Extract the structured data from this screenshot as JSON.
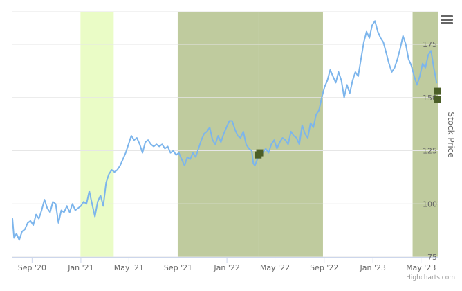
{
  "chart_data": {
    "type": "line",
    "title": "",
    "xlabel": "",
    "ylabel": "Stock Price",
    "ylim": [
      75,
      190
    ],
    "xlim": [
      "2020-07-14",
      "2023-06-12"
    ],
    "y_ticks": [
      75,
      100,
      125,
      150,
      175
    ],
    "x_ticks": [
      {
        "date": "2020-09-01",
        "label": "Sep '20"
      },
      {
        "date": "2021-01-01",
        "label": "Jan '21"
      },
      {
        "date": "2021-05-01",
        "label": "May '21"
      },
      {
        "date": "2021-09-01",
        "label": "Sep '21"
      },
      {
        "date": "2022-01-01",
        "label": "Jan '22"
      },
      {
        "date": "2022-05-01",
        "label": "May '22"
      },
      {
        "date": "2022-09-01",
        "label": "Sep '22"
      },
      {
        "date": "2023-01-01",
        "label": "Jan '23"
      },
      {
        "date": "2023-05-01",
        "label": "May '23"
      }
    ],
    "grid": true,
    "legend": "none",
    "series": [
      {
        "color": "#7cb5ec",
        "points": [
          [
            "2020-07-14",
            93
          ],
          [
            "2020-07-18",
            84
          ],
          [
            "2020-07-24",
            86
          ],
          [
            "2020-07-31",
            83
          ],
          [
            "2020-08-07",
            87
          ],
          [
            "2020-08-14",
            88
          ],
          [
            "2020-08-21",
            91
          ],
          [
            "2020-08-28",
            92
          ],
          [
            "2020-09-04",
            90
          ],
          [
            "2020-09-11",
            95
          ],
          [
            "2020-09-18",
            93
          ],
          [
            "2020-09-25",
            97
          ],
          [
            "2020-10-02",
            102
          ],
          [
            "2020-10-09",
            98
          ],
          [
            "2020-10-16",
            96
          ],
          [
            "2020-10-23",
            101
          ],
          [
            "2020-10-30",
            100
          ],
          [
            "2020-11-06",
            91
          ],
          [
            "2020-11-13",
            97
          ],
          [
            "2020-11-20",
            96
          ],
          [
            "2020-11-27",
            99
          ],
          [
            "2020-12-04",
            96
          ],
          [
            "2020-12-11",
            100
          ],
          [
            "2020-12-18",
            97
          ],
          [
            "2020-12-25",
            98
          ],
          [
            "2021-01-01",
            99
          ],
          [
            "2021-01-08",
            101
          ],
          [
            "2021-01-15",
            100
          ],
          [
            "2021-01-22",
            106
          ],
          [
            "2021-01-29",
            100
          ],
          [
            "2021-02-05",
            94
          ],
          [
            "2021-02-12",
            101
          ],
          [
            "2021-02-19",
            104
          ],
          [
            "2021-02-26",
            99
          ],
          [
            "2021-03-05",
            110
          ],
          [
            "2021-03-12",
            114
          ],
          [
            "2021-03-19",
            116
          ],
          [
            "2021-03-26",
            115
          ],
          [
            "2021-04-02",
            116
          ],
          [
            "2021-04-09",
            118
          ],
          [
            "2021-04-16",
            121
          ],
          [
            "2021-04-23",
            124
          ],
          [
            "2021-04-30",
            128
          ],
          [
            "2021-05-07",
            132
          ],
          [
            "2021-05-14",
            130
          ],
          [
            "2021-05-21",
            131
          ],
          [
            "2021-05-28",
            128
          ],
          [
            "2021-06-04",
            124
          ],
          [
            "2021-06-11",
            129
          ],
          [
            "2021-06-18",
            130
          ],
          [
            "2021-06-25",
            128
          ],
          [
            "2021-07-02",
            127
          ],
          [
            "2021-07-09",
            128
          ],
          [
            "2021-07-16",
            127
          ],
          [
            "2021-07-23",
            128
          ],
          [
            "2021-07-30",
            126
          ],
          [
            "2021-08-06",
            127
          ],
          [
            "2021-08-13",
            124
          ],
          [
            "2021-08-20",
            125
          ],
          [
            "2021-08-27",
            123
          ],
          [
            "2021-09-03",
            124
          ],
          [
            "2021-09-10",
            121
          ],
          [
            "2021-09-17",
            118
          ],
          [
            "2021-09-24",
            122
          ],
          [
            "2021-10-01",
            121
          ],
          [
            "2021-10-08",
            124
          ],
          [
            "2021-10-15",
            122
          ],
          [
            "2021-10-22",
            126
          ],
          [
            "2021-10-29",
            130
          ],
          [
            "2021-11-05",
            133
          ],
          [
            "2021-11-12",
            134
          ],
          [
            "2021-11-19",
            136
          ],
          [
            "2021-11-26",
            130
          ],
          [
            "2021-12-03",
            128
          ],
          [
            "2021-12-10",
            132
          ],
          [
            "2021-12-17",
            129
          ],
          [
            "2021-12-24",
            133
          ],
          [
            "2021-12-31",
            136
          ],
          [
            "2022-01-07",
            139
          ],
          [
            "2022-01-14",
            139
          ],
          [
            "2022-01-21",
            135
          ],
          [
            "2022-01-28",
            132
          ],
          [
            "2022-02-04",
            131
          ],
          [
            "2022-02-11",
            134
          ],
          [
            "2022-02-18",
            128
          ],
          [
            "2022-02-25",
            126
          ],
          [
            "2022-03-04",
            125
          ],
          [
            "2022-03-08",
            119
          ],
          [
            "2022-03-12",
            118
          ],
          [
            "2022-03-18",
            121
          ],
          [
            "2022-03-25",
            123
          ],
          [
            "2022-04-01",
            124
          ],
          [
            "2022-04-08",
            126
          ],
          [
            "2022-04-15",
            124
          ],
          [
            "2022-04-22",
            128
          ],
          [
            "2022-04-29",
            130
          ],
          [
            "2022-05-06",
            126
          ],
          [
            "2022-05-13",
            129
          ],
          [
            "2022-05-20",
            131
          ],
          [
            "2022-05-27",
            130
          ],
          [
            "2022-06-03",
            128
          ],
          [
            "2022-06-10",
            134
          ],
          [
            "2022-06-17",
            132
          ],
          [
            "2022-06-24",
            131
          ],
          [
            "2022-07-01",
            128
          ],
          [
            "2022-07-08",
            137
          ],
          [
            "2022-07-15",
            133
          ],
          [
            "2022-07-22",
            131
          ],
          [
            "2022-07-29",
            138
          ],
          [
            "2022-08-05",
            136
          ],
          [
            "2022-08-12",
            142
          ],
          [
            "2022-08-19",
            144
          ],
          [
            "2022-08-26",
            150
          ],
          [
            "2022-09-02",
            155
          ],
          [
            "2022-09-09",
            158
          ],
          [
            "2022-09-16",
            163
          ],
          [
            "2022-09-23",
            160
          ],
          [
            "2022-09-30",
            157
          ],
          [
            "2022-10-07",
            162
          ],
          [
            "2022-10-14",
            158
          ],
          [
            "2022-10-21",
            150
          ],
          [
            "2022-10-28",
            156
          ],
          [
            "2022-11-04",
            152
          ],
          [
            "2022-11-11",
            158
          ],
          [
            "2022-11-18",
            162
          ],
          [
            "2022-11-25",
            160
          ],
          [
            "2022-12-02",
            168
          ],
          [
            "2022-12-09",
            176
          ],
          [
            "2022-12-16",
            181
          ],
          [
            "2022-12-23",
            178
          ],
          [
            "2022-12-30",
            184
          ],
          [
            "2023-01-06",
            186
          ],
          [
            "2023-01-13",
            181
          ],
          [
            "2023-01-20",
            178
          ],
          [
            "2023-01-27",
            176
          ],
          [
            "2023-02-03",
            171
          ],
          [
            "2023-02-10",
            166
          ],
          [
            "2023-02-17",
            162
          ],
          [
            "2023-02-24",
            164
          ],
          [
            "2023-03-03",
            168
          ],
          [
            "2023-03-10",
            173
          ],
          [
            "2023-03-17",
            179
          ],
          [
            "2023-03-24",
            175
          ],
          [
            "2023-03-31",
            168
          ],
          [
            "2023-04-07",
            165
          ],
          [
            "2023-04-14",
            160
          ],
          [
            "2023-04-21",
            156
          ],
          [
            "2023-04-28",
            160
          ],
          [
            "2023-05-05",
            166
          ],
          [
            "2023-05-12",
            164
          ],
          [
            "2023-05-19",
            170
          ],
          [
            "2023-05-26",
            172
          ],
          [
            "2023-06-02",
            164
          ],
          [
            "2023-06-09",
            157
          ]
        ]
      }
    ],
    "bands": [
      {
        "from": "2020-12-31",
        "to": "2021-03-24",
        "color": "#eafcc6"
      },
      {
        "from": "2021-08-31",
        "to": "2022-08-29",
        "color": "#bfcb9e"
      },
      {
        "from": "2023-04-10",
        "to": "2023-06-12",
        "color": "#bfcb9e"
      }
    ],
    "vertical_lines": [
      {
        "date": "2022-03-22",
        "color": "#d3d9bf"
      }
    ],
    "markers": [
      {
        "date": "2022-03-20",
        "value": 123,
        "color": "#4b5e27"
      },
      {
        "date": "2022-03-24",
        "value": 124,
        "color": "#4b5e27"
      },
      {
        "date": "2023-06-11",
        "value": 153,
        "color": "#4b5e27"
      },
      {
        "date": "2023-06-11",
        "value": 149,
        "color": "#4b5e27"
      }
    ]
  },
  "menu": {
    "icon": "hamburger-menu-icon"
  },
  "credits": {
    "text": "Highcharts.com"
  }
}
